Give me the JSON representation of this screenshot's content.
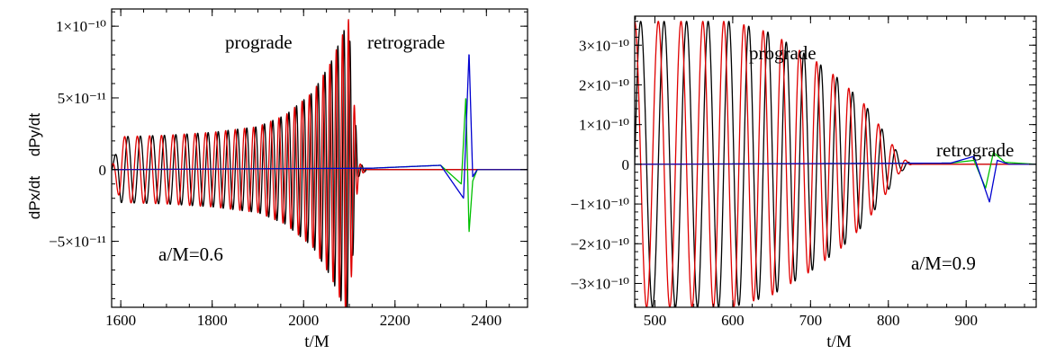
{
  "chart_data": [
    {
      "type": "line",
      "xlabel": "t/M",
      "ylabel_top": "dPy/dt",
      "ylabel_bottom": "dPx/dt",
      "xlim": [
        1580,
        2490
      ],
      "ylim": [
        -9.6e-11,
        1.12e-10
      ],
      "x_ticks": [
        1600,
        1800,
        2000,
        2200,
        2400
      ],
      "x_tick_labels": [
        "1600",
        "1800",
        "2000",
        "2200",
        "2400"
      ],
      "y_ticks": [
        1e-10,
        5e-11,
        0,
        -5e-11
      ],
      "y_tick_labels": [
        "1×10⁻¹⁰",
        "5×10⁻¹¹",
        "0",
        "−5×10⁻¹¹"
      ],
      "annotations": [
        "prograde",
        "retrograde",
        "a/M=0.6"
      ],
      "spin": 0.6,
      "series": [
        {
          "color": "#000000",
          "kind": "prograde-x",
          "points": [
            [
              1580,
              2e-12
            ],
            [
              1600,
              2.3e-11
            ],
            [
              1700,
              2.4e-11
            ],
            [
              1800,
              2.6e-11
            ],
            [
              1900,
              3e-11
            ],
            [
              1960,
              3.8e-11
            ],
            [
              2020,
              5.4e-11
            ],
            [
              2060,
              7.5e-11
            ],
            [
              2085,
              9.4e-11
            ],
            [
              2098,
              1.06e-10
            ],
            [
              2110,
              5e-11
            ],
            [
              2120,
              5e-12
            ],
            [
              2140,
              0
            ],
            [
              2490,
              0
            ]
          ],
          "chirp": {
            "t0": 2098,
            "periodStart": 29,
            "periodEnd": 13,
            "tStart": 1580
          }
        },
        {
          "color": "#e00000",
          "kind": "prograde-y",
          "points": [
            [
              1580,
              2e-12
            ],
            [
              1600,
              2.3e-11
            ],
            [
              1700,
              2.4e-11
            ],
            [
              1800,
              2.6e-11
            ],
            [
              1900,
              3e-11
            ],
            [
              1960,
              3.8e-11
            ],
            [
              2020,
              5.4e-11
            ],
            [
              2060,
              7.5e-11
            ],
            [
              2085,
              9.4e-11
            ],
            [
              2098,
              1.06e-10
            ],
            [
              2110,
              5e-11
            ],
            [
              2120,
              5e-12
            ],
            [
              2140,
              0
            ],
            [
              2490,
              0
            ]
          ],
          "chirp": {
            "t0": 2098,
            "periodStart": 29,
            "periodEnd": 13,
            "tStart": 1580
          }
        },
        {
          "color": "#00c000",
          "kind": "retrograde-x",
          "points": [
            [
              1580,
              0
            ],
            [
              2150,
              1e-12
            ],
            [
              2300,
              3e-12
            ],
            [
              2345,
              -1e-11
            ],
            [
              2355,
              5.1e-11
            ],
            [
              2362,
              -4.4e-11
            ],
            [
              2370,
              -8e-12
            ],
            [
              2380,
              0
            ],
            [
              2490,
              0
            ]
          ]
        },
        {
          "color": "#0000d0",
          "kind": "retrograde-y",
          "points": [
            [
              1580,
              0
            ],
            [
              2150,
              1e-12
            ],
            [
              2300,
              3e-12
            ],
            [
              2350,
              -2e-11
            ],
            [
              2362,
              8.2e-11
            ],
            [
              2370,
              -5e-12
            ],
            [
              2380,
              0
            ],
            [
              2490,
              0
            ]
          ]
        }
      ]
    },
    {
      "type": "line",
      "xlabel": "t/M",
      "xlim": [
        474,
        990
      ],
      "ylim": [
        -3.6e-10,
        3.73e-10
      ],
      "x_ticks": [
        500,
        600,
        700,
        800,
        900
      ],
      "x_tick_labels": [
        "500",
        "600",
        "700",
        "800",
        "900"
      ],
      "y_ticks": [
        3e-10,
        2e-10,
        1e-10,
        0,
        -1e-10,
        -2e-10,
        -3e-10
      ],
      "y_tick_labels": [
        "3×10⁻¹⁰",
        "2×10⁻¹⁰",
        "1×10⁻¹⁰",
        "0",
        "−1×10⁻¹⁰",
        "−2×10⁻¹⁰",
        "−3×10⁻¹⁰"
      ],
      "annotations": [
        "prograde",
        "retrograde",
        "a/M=0.9"
      ],
      "spin": 0.9,
      "series": [
        {
          "color": "#000000",
          "kind": "prograde-x",
          "points": [
            [
              474,
              3.6e-10
            ],
            [
              600,
              3.6e-10
            ],
            [
              650,
              3.3e-10
            ],
            [
              700,
              2.7e-10
            ],
            [
              740,
              2.1e-10
            ],
            [
              770,
              1.5e-10
            ],
            [
              795,
              8e-11
            ],
            [
              815,
              2e-11
            ],
            [
              830,
              0
            ],
            [
              990,
              0
            ]
          ],
          "chirp": {
            "t0": 820,
            "periodStart": 31,
            "periodEnd": 17,
            "tStart": 474
          }
        },
        {
          "color": "#e00000",
          "kind": "prograde-y",
          "points": [
            [
              474,
              3.6e-10
            ],
            [
              600,
              3.6e-10
            ],
            [
              650,
              3.3e-10
            ],
            [
              700,
              2.7e-10
            ],
            [
              740,
              2.1e-10
            ],
            [
              770,
              1.5e-10
            ],
            [
              795,
              8e-11
            ],
            [
              815,
              2e-11
            ],
            [
              830,
              0
            ],
            [
              990,
              0
            ]
          ],
          "chirp": {
            "t0": 820,
            "periodStart": 31,
            "periodEnd": 17,
            "tStart": 474
          }
        },
        {
          "color": "#00c000",
          "kind": "retrograde-x",
          "points": [
            [
              474,
              0
            ],
            [
              880,
              3e-12
            ],
            [
              910,
              1e-11
            ],
            [
              925,
              -6e-11
            ],
            [
              935,
              3e-11
            ],
            [
              950,
              5e-12
            ],
            [
              990,
              0
            ]
          ]
        },
        {
          "color": "#0000d0",
          "kind": "retrograde-y",
          "points": [
            [
              474,
              0
            ],
            [
              880,
              3e-12
            ],
            [
              910,
              2e-11
            ],
            [
              930,
              -9.5e-11
            ],
            [
              940,
              1e-11
            ],
            [
              955,
              0
            ],
            [
              990,
              0
            ]
          ]
        }
      ]
    }
  ]
}
